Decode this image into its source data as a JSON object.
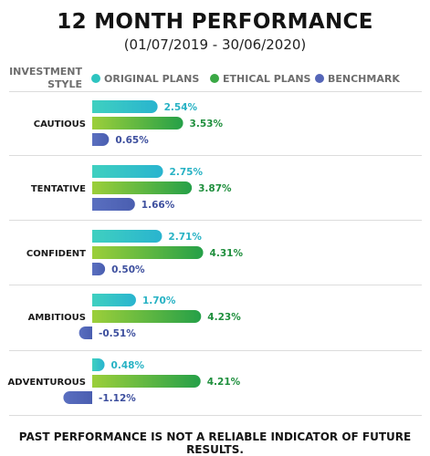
{
  "header": {
    "title": "12 MONTH PERFORMANCE",
    "subtitle": "(01/07/2019 - 30/06/2020)"
  },
  "legend": {
    "title_line1": "INVESTMENT",
    "title_line2": "STYLE"
  },
  "footer": {
    "disclaimer": "PAST PERFORMANCE IS NOT A RELIABLE INDICATOR OF FUTURE RESULTS."
  },
  "colors": {
    "original": "#2ec4c0",
    "ethical": "#3aa845",
    "benchmark": "#5566b8",
    "original_text": "#27b2c4",
    "ethical_text": "#1f8f3d",
    "benchmark_text": "#3d4f9e"
  },
  "chart_data": {
    "type": "bar",
    "orientation": "horizontal",
    "categories": [
      "CAUTIOUS",
      "TENTATIVE",
      "CONFIDENT",
      "AMBITIOUS",
      "ADVENTUROUS"
    ],
    "series": [
      {
        "name": "ORIGINAL PLANS",
        "values": [
          2.54,
          2.75,
          2.71,
          1.7,
          0.48
        ],
        "labels": [
          "2.54%",
          "2.75%",
          "2.71%",
          "1.70%",
          "0.48%"
        ]
      },
      {
        "name": "ETHICAL PLANS",
        "values": [
          3.53,
          3.87,
          4.31,
          4.23,
          4.21
        ],
        "labels": [
          "3.53%",
          "3.87%",
          "4.31%",
          "4.23%",
          "4.21%"
        ]
      },
      {
        "name": "BENCHMARK",
        "values": [
          0.65,
          1.66,
          0.5,
          -0.51,
          -1.12
        ],
        "labels": [
          "0.65%",
          "1.66%",
          "0.50%",
          "-0.51%",
          "-1.12%"
        ]
      }
    ],
    "legend_position": "top",
    "grid": false
  }
}
